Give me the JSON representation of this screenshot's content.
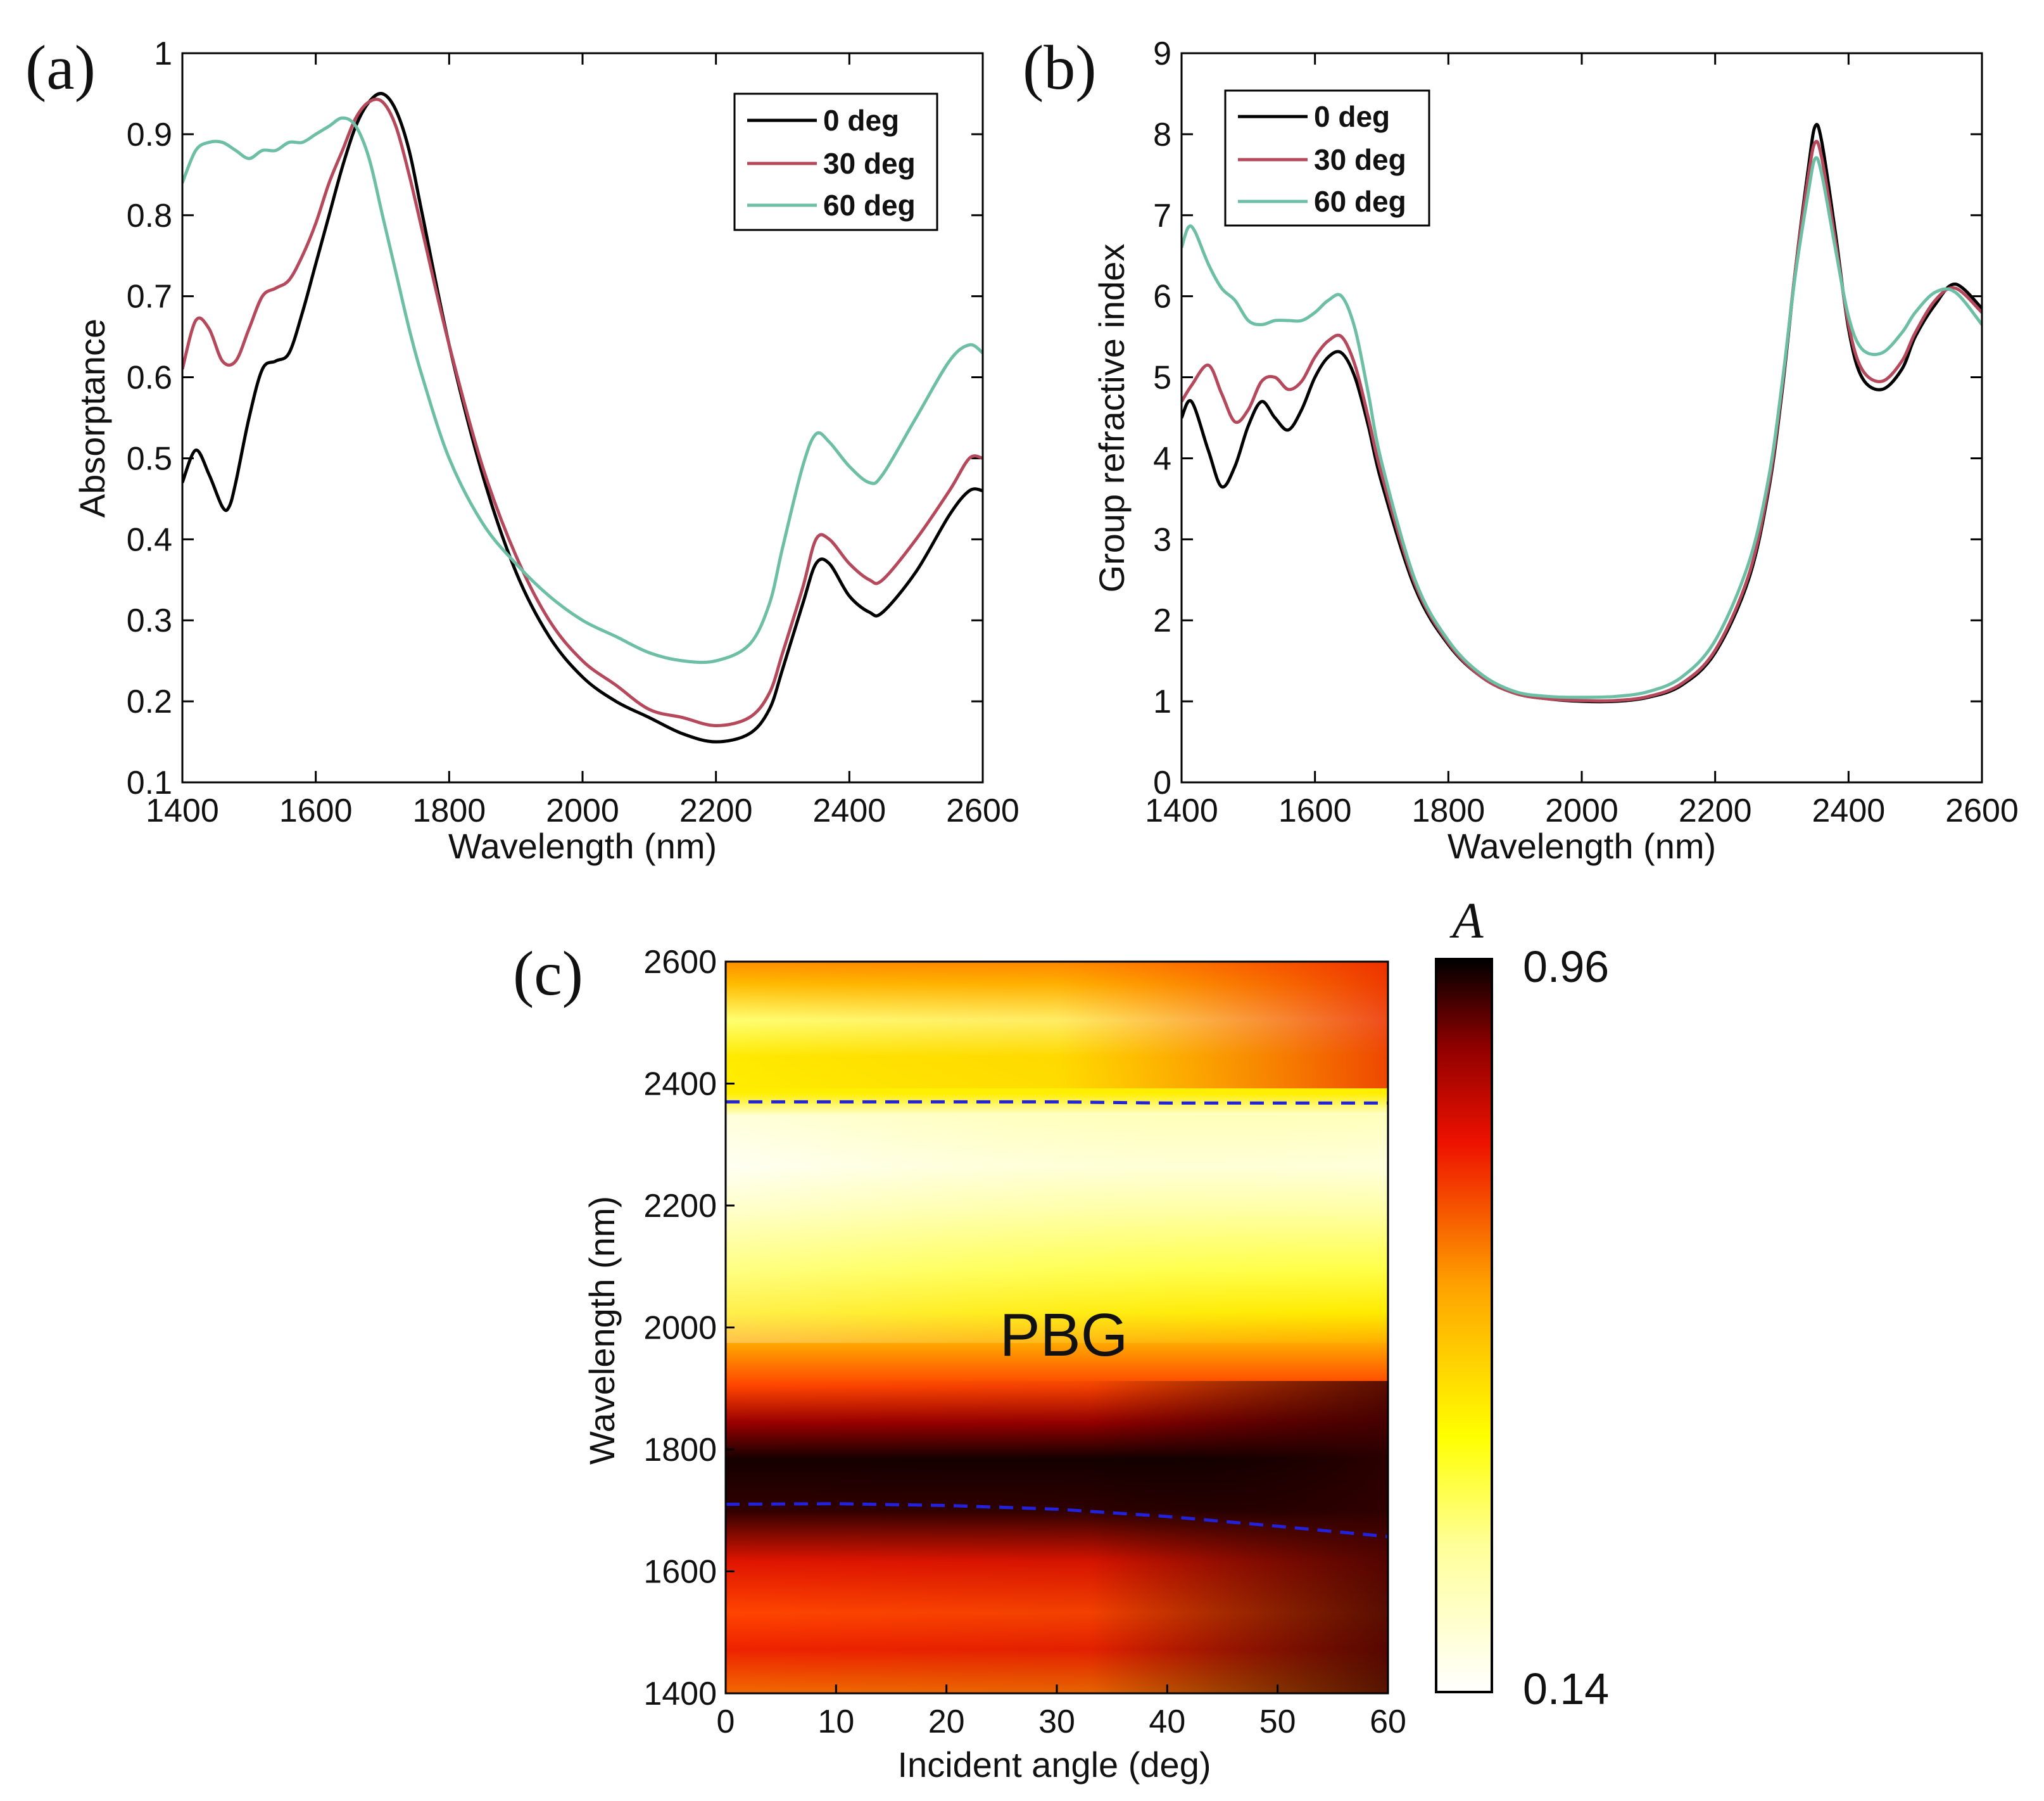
{
  "figure": {
    "panels": [
      "(a)",
      "(b)",
      "(c)"
    ]
  },
  "chart_data": [
    {
      "id": "a",
      "type": "line",
      "panel_label": "(a)",
      "xlabel": "Wavelength (nm)",
      "ylabel": "Absorptance",
      "xlim": [
        1400,
        2600
      ],
      "ylim": [
        0.1,
        1.0
      ],
      "xticks": [
        1400,
        1600,
        1800,
        2000,
        2200,
        2400,
        2600
      ],
      "yticks": [
        0.1,
        0.2,
        0.3,
        0.4,
        0.5,
        0.6,
        0.7,
        0.8,
        0.9,
        1
      ],
      "ytick_labels": [
        "0.1",
        "0.2",
        "0.3",
        "0.4",
        "0.5",
        "0.6",
        "0.7",
        "0.8",
        "0.9",
        "1"
      ],
      "legend_position": "top-right",
      "series": [
        {
          "name": "0 deg",
          "color": "#000000",
          "x": [
            1400,
            1420,
            1440,
            1460,
            1470,
            1480,
            1500,
            1520,
            1540,
            1560,
            1580,
            1600,
            1620,
            1640,
            1660,
            1680,
            1700,
            1720,
            1740,
            1760,
            1800,
            1850,
            1900,
            1950,
            2000,
            2050,
            2100,
            2150,
            2200,
            2250,
            2280,
            2300,
            2330,
            2350,
            2370,
            2400,
            2430,
            2450,
            2500,
            2550,
            2580,
            2600
          ],
          "y": [
            0.47,
            0.51,
            0.48,
            0.44,
            0.44,
            0.47,
            0.55,
            0.61,
            0.62,
            0.63,
            0.68,
            0.74,
            0.8,
            0.86,
            0.91,
            0.94,
            0.95,
            0.93,
            0.88,
            0.8,
            0.64,
            0.48,
            0.36,
            0.28,
            0.23,
            0.2,
            0.18,
            0.16,
            0.15,
            0.16,
            0.19,
            0.24,
            0.32,
            0.37,
            0.37,
            0.33,
            0.31,
            0.31,
            0.36,
            0.43,
            0.46,
            0.46
          ]
        },
        {
          "name": "30 deg",
          "color": "#b5495b",
          "x": [
            1400,
            1420,
            1440,
            1460,
            1480,
            1500,
            1520,
            1540,
            1560,
            1580,
            1600,
            1620,
            1640,
            1660,
            1680,
            1700,
            1720,
            1740,
            1760,
            1800,
            1850,
            1900,
            1950,
            2000,
            2050,
            2100,
            2150,
            2200,
            2250,
            2280,
            2300,
            2330,
            2350,
            2370,
            2400,
            2430,
            2450,
            2500,
            2550,
            2580,
            2600
          ],
          "y": [
            0.61,
            0.67,
            0.66,
            0.62,
            0.62,
            0.66,
            0.7,
            0.71,
            0.72,
            0.75,
            0.79,
            0.84,
            0.88,
            0.92,
            0.94,
            0.94,
            0.91,
            0.85,
            0.78,
            0.64,
            0.49,
            0.38,
            0.3,
            0.25,
            0.22,
            0.19,
            0.18,
            0.17,
            0.18,
            0.21,
            0.26,
            0.34,
            0.4,
            0.4,
            0.37,
            0.35,
            0.35,
            0.4,
            0.46,
            0.5,
            0.5
          ]
        },
        {
          "name": "60 deg",
          "color": "#6cbfa4",
          "x": [
            1400,
            1420,
            1440,
            1460,
            1480,
            1500,
            1520,
            1540,
            1560,
            1580,
            1600,
            1620,
            1640,
            1660,
            1680,
            1700,
            1720,
            1740,
            1760,
            1800,
            1850,
            1900,
            1950,
            2000,
            2050,
            2100,
            2150,
            2200,
            2250,
            2280,
            2300,
            2330,
            2350,
            2370,
            2400,
            2430,
            2450,
            2500,
            2550,
            2580,
            2600
          ],
          "y": [
            0.84,
            0.88,
            0.89,
            0.89,
            0.88,
            0.87,
            0.88,
            0.88,
            0.89,
            0.89,
            0.9,
            0.91,
            0.92,
            0.91,
            0.87,
            0.8,
            0.73,
            0.66,
            0.6,
            0.5,
            0.42,
            0.37,
            0.33,
            0.3,
            0.28,
            0.26,
            0.25,
            0.25,
            0.27,
            0.32,
            0.39,
            0.49,
            0.53,
            0.52,
            0.49,
            0.47,
            0.48,
            0.55,
            0.62,
            0.64,
            0.63
          ]
        }
      ]
    },
    {
      "id": "b",
      "type": "line",
      "panel_label": "(b)",
      "xlabel": "Wavelength (nm)",
      "ylabel": "Group refractive index",
      "xlim": [
        1400,
        2600
      ],
      "ylim": [
        0,
        9
      ],
      "xticks": [
        1400,
        1600,
        1800,
        2000,
        2200,
        2400,
        2600
      ],
      "yticks": [
        0,
        1,
        2,
        3,
        4,
        5,
        6,
        7,
        8,
        9
      ],
      "ytick_labels": [
        "0",
        "1",
        "2",
        "3",
        "4",
        "5",
        "6",
        "7",
        "8",
        "9"
      ],
      "legend_position": "top-left",
      "series": [
        {
          "name": "0 deg",
          "color": "#000000",
          "x": [
            1400,
            1415,
            1440,
            1460,
            1480,
            1500,
            1520,
            1540,
            1560,
            1580,
            1600,
            1620,
            1640,
            1660,
            1680,
            1700,
            1750,
            1800,
            1850,
            1900,
            1950,
            2000,
            2050,
            2100,
            2150,
            2200,
            2250,
            2280,
            2300,
            2320,
            2340,
            2350,
            2360,
            2380,
            2400,
            2420,
            2450,
            2480,
            2500,
            2530,
            2560,
            2600
          ],
          "y": [
            4.5,
            4.7,
            4.1,
            3.65,
            3.9,
            4.4,
            4.7,
            4.5,
            4.35,
            4.6,
            5.0,
            5.25,
            5.3,
            5.0,
            4.4,
            3.7,
            2.4,
            1.7,
            1.3,
            1.1,
            1.03,
            1.0,
            1.0,
            1.05,
            1.2,
            1.6,
            2.5,
            3.6,
            4.8,
            6.3,
            7.6,
            8.1,
            7.9,
            6.8,
            5.6,
            5.0,
            4.85,
            5.1,
            5.5,
            5.9,
            6.15,
            5.85
          ]
        },
        {
          "name": "30 deg",
          "color": "#b5495b",
          "x": [
            1400,
            1415,
            1440,
            1460,
            1480,
            1500,
            1520,
            1540,
            1560,
            1580,
            1600,
            1620,
            1640,
            1660,
            1680,
            1700,
            1750,
            1800,
            1850,
            1900,
            1950,
            2000,
            2050,
            2100,
            2150,
            2200,
            2250,
            2280,
            2300,
            2320,
            2340,
            2350,
            2360,
            2380,
            2400,
            2420,
            2450,
            2480,
            2500,
            2530,
            2560,
            2600
          ],
          "y": [
            4.7,
            4.9,
            5.15,
            4.8,
            4.45,
            4.6,
            4.95,
            5.0,
            4.85,
            4.95,
            5.25,
            5.45,
            5.5,
            5.15,
            4.5,
            3.8,
            2.45,
            1.72,
            1.3,
            1.1,
            1.03,
            1.01,
            1.01,
            1.06,
            1.22,
            1.63,
            2.55,
            3.65,
            4.85,
            6.3,
            7.5,
            7.9,
            7.7,
            6.7,
            5.65,
            5.1,
            4.95,
            5.2,
            5.55,
            5.95,
            6.1,
            5.8
          ]
        },
        {
          "name": "60 deg",
          "color": "#6cbfa4",
          "x": [
            1400,
            1410,
            1420,
            1440,
            1460,
            1480,
            1500,
            1520,
            1540,
            1560,
            1580,
            1600,
            1620,
            1640,
            1660,
            1680,
            1700,
            1750,
            1800,
            1850,
            1900,
            1950,
            2000,
            2050,
            2100,
            2150,
            2200,
            2250,
            2280,
            2300,
            2320,
            2340,
            2350,
            2360,
            2380,
            2400,
            2420,
            2450,
            2480,
            2500,
            2530,
            2560,
            2600
          ],
          "y": [
            6.6,
            6.85,
            6.8,
            6.4,
            6.1,
            5.95,
            5.7,
            5.65,
            5.7,
            5.7,
            5.7,
            5.8,
            5.95,
            6.0,
            5.6,
            4.8,
            3.95,
            2.5,
            1.75,
            1.33,
            1.12,
            1.06,
            1.05,
            1.06,
            1.12,
            1.3,
            1.75,
            2.7,
            3.75,
            4.9,
            6.25,
            7.3,
            7.7,
            7.5,
            6.6,
            5.75,
            5.35,
            5.3,
            5.55,
            5.8,
            6.05,
            6.05,
            5.65
          ]
        }
      ]
    },
    {
      "id": "c",
      "type": "heatmap",
      "panel_label": "(c)",
      "xlabel": "Incident angle (deg)",
      "ylabel": "Wavelength (nm)",
      "xlim": [
        0,
        60
      ],
      "ylim": [
        1400,
        2600
      ],
      "xticks": [
        0,
        10,
        20,
        30,
        40,
        50,
        60
      ],
      "yticks": [
        1400,
        1600,
        1800,
        2000,
        2200,
        2400,
        2600
      ],
      "annotation": "PBG",
      "colorbar": {
        "title": "A",
        "min": 0.14,
        "max": 0.96,
        "min_label": "0.14",
        "max_label": "0.96",
        "colormap": "hot-reversed"
      },
      "band_edges": [
        {
          "name": "upper",
          "color": "#2222dd",
          "angle": [
            0,
            10,
            20,
            30,
            40,
            50,
            60
          ],
          "wavelength": [
            2370,
            2370,
            2370,
            2370,
            2368,
            2368,
            2368
          ]
        },
        {
          "name": "lower",
          "color": "#2222dd",
          "angle": [
            0,
            10,
            20,
            30,
            40,
            50,
            60
          ],
          "wavelength": [
            1710,
            1711,
            1708,
            1702,
            1690,
            1674,
            1657
          ]
        }
      ]
    }
  ]
}
